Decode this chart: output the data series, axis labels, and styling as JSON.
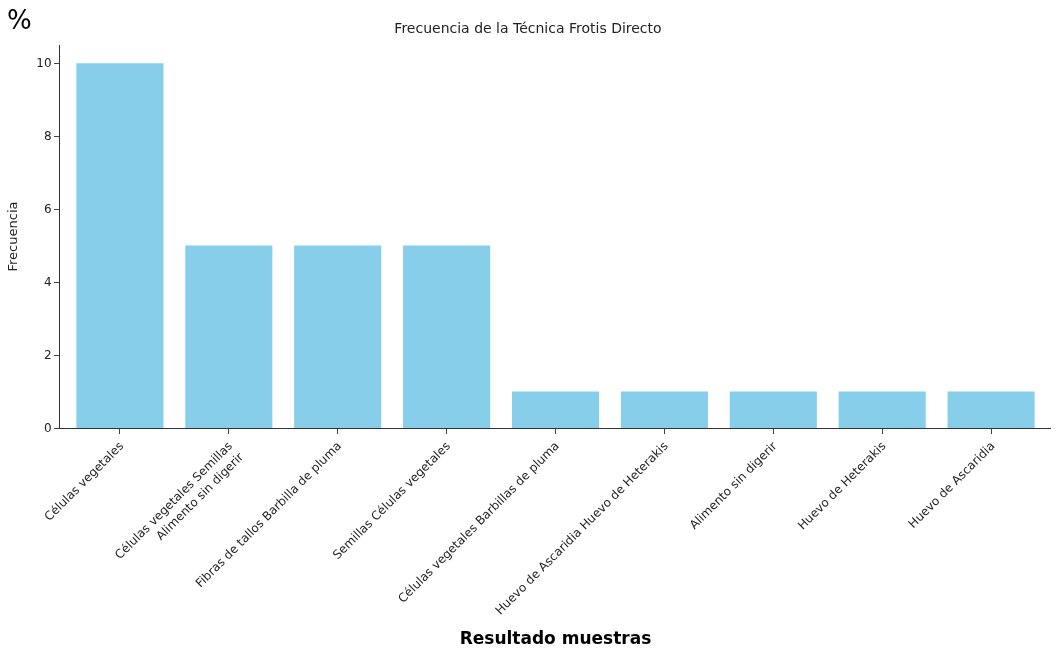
{
  "chart_data": {
    "type": "bar",
    "title": "Frecuencia de la Técnica Frotis Directo",
    "xlabel": "Resultado muestras",
    "ylabel": "Frecuencia",
    "annotations": [
      "%"
    ],
    "categories": [
      "Células vegetales",
      "Células vegetales Semillas\nAlimento sin digerir",
      "Fibras de tallos Barbilla de pluma",
      "Semillas Células vegetales",
      "Células vegetales Barbillas de pluma",
      "Huevo de Ascaridia Huevo de Heterakis",
      "Alimento sin digerir",
      "Huevo de Heterakis",
      "Huevo de Ascaridia"
    ],
    "values": [
      10,
      5,
      5,
      5,
      1,
      1,
      1,
      1,
      1
    ],
    "color": "#87ceeb",
    "ylim": [
      0,
      10.5
    ],
    "yticks": [
      0,
      2,
      4,
      6,
      8,
      10
    ]
  }
}
